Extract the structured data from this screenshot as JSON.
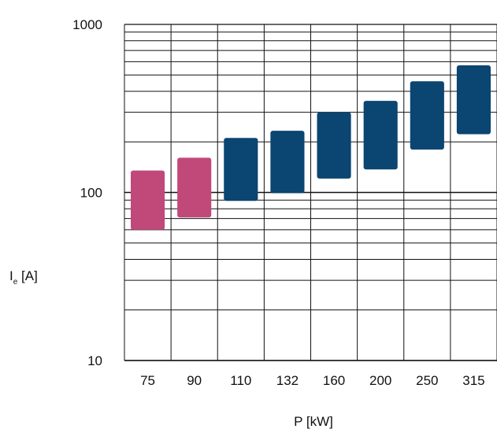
{
  "chart_data": {
    "type": "bar",
    "subtype": "floating-range",
    "scale_y": "log",
    "ylim": [
      10,
      1000
    ],
    "y_ticks": [
      "10",
      "100",
      "1000"
    ],
    "xlabel": "P [kW]",
    "ylabel": {
      "main": "I",
      "sub": "e",
      "unit": " [A]"
    },
    "grid": true,
    "categories": [
      "75",
      "90",
      "110",
      "132",
      "160",
      "200",
      "250",
      "315"
    ],
    "ranges": [
      {
        "low": 60,
        "high": 135,
        "color": "#c0497a"
      },
      {
        "low": 71,
        "high": 161,
        "color": "#c0497a"
      },
      {
        "low": 89,
        "high": 211,
        "color": "#0b4571"
      },
      {
        "low": 99,
        "high": 233,
        "color": "#0b4571"
      },
      {
        "low": 121,
        "high": 300,
        "color": "#0b4571"
      },
      {
        "low": 137,
        "high": 351,
        "color": "#0b4571"
      },
      {
        "low": 180,
        "high": 459,
        "color": "#0b4571"
      },
      {
        "low": 222,
        "high": 571,
        "color": "#0b4571"
      }
    ]
  }
}
